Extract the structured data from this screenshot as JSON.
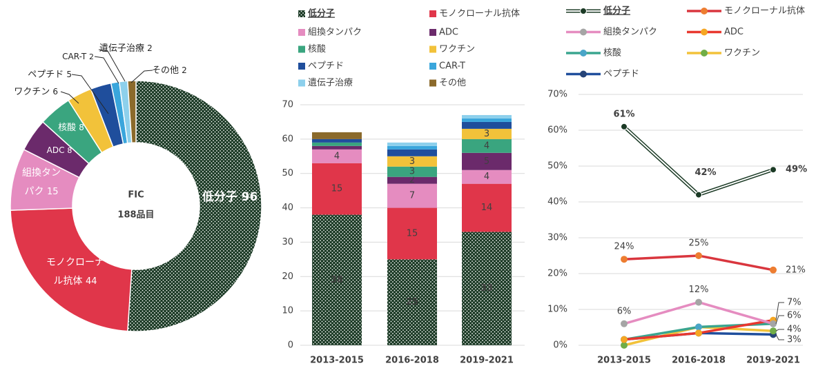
{
  "chart_data": [
    {
      "type": "pie",
      "center_title": "FIC",
      "center_subtitle": "188品目",
      "categories": [
        "低分子",
        "モノクローナル抗体",
        "組換タンパク",
        "ADC",
        "核酸",
        "ワクチン",
        "ペプチド",
        "CAR-T",
        "遺伝子治療",
        "その他"
      ],
      "values": [
        96,
        44,
        15,
        8,
        8,
        6,
        5,
        2,
        2,
        2
      ],
      "colors": [
        "#1b3a25",
        "#e0364a",
        "#e58cc0",
        "#6b2a6b",
        "#3aa57f",
        "#f2c23a",
        "#1f4e9c",
        "#3aa6dc",
        "#8dd0ec",
        "#8b6a2b"
      ],
      "patterns": [
        "dots",
        null,
        null,
        null,
        null,
        null,
        null,
        null,
        null,
        null
      ]
    },
    {
      "type": "bar",
      "stacked": true,
      "categories": [
        "2013-2015",
        "2016-2018",
        "2019-2021"
      ],
      "ylim": [
        0,
        70
      ],
      "yticks": [
        0,
        10,
        20,
        30,
        40,
        50,
        60,
        70
      ],
      "grid": true,
      "series": [
        {
          "name": "低分子",
          "color": "#1b3a25",
          "pattern": "dots",
          "values": [
            38,
            25,
            33
          ]
        },
        {
          "name": "モノクローナル抗体",
          "color": "#e0364a",
          "values": [
            15,
            15,
            14
          ]
        },
        {
          "name": "組換タンパク",
          "color": "#e58cc0",
          "values": [
            4,
            7,
            4
          ]
        },
        {
          "name": "ADC",
          "color": "#6b2a6b",
          "values": [
            1,
            2,
            5
          ]
        },
        {
          "name": "核酸",
          "color": "#3aa57f",
          "values": [
            1,
            3,
            4
          ]
        },
        {
          "name": "ワクチン",
          "color": "#f2c23a",
          "values": [
            0,
            3,
            3
          ]
        },
        {
          "name": "ペプチド",
          "color": "#1f4e9c",
          "values": [
            1,
            2,
            2
          ]
        },
        {
          "name": "CAR-T",
          "color": "#3aa6dc",
          "values": [
            0,
            1,
            1
          ]
        },
        {
          "name": "遺伝子治療",
          "color": "#8dd0ec",
          "values": [
            0,
            1,
            1
          ]
        },
        {
          "name": "その他",
          "color": "#8b6a2b",
          "values": [
            2,
            0,
            0
          ]
        }
      ]
    },
    {
      "type": "line",
      "categories": [
        "2013-2015",
        "2016-2018",
        "2019-2021"
      ],
      "ylim": [
        0,
        70
      ],
      "yticks": [
        {
          "value": 0,
          "label": "0%"
        },
        {
          "value": 10,
          "label": "10%"
        },
        {
          "value": 20,
          "label": "20%"
        },
        {
          "value": 30,
          "label": "30%"
        },
        {
          "value": 40,
          "label": "40%"
        },
        {
          "value": 50,
          "label": "50%"
        },
        {
          "value": 60,
          "label": "60%"
        },
        {
          "value": 70,
          "label": "70%"
        }
      ],
      "grid": true,
      "series": [
        {
          "name": "低分子",
          "color": "#1b3a25",
          "marker_color": "#1b3a25",
          "style": "double",
          "values": [
            61,
            42,
            49
          ],
          "value_labels": [
            "61%",
            "42%",
            "49%"
          ]
        },
        {
          "name": "モノクローナル抗体",
          "color": "#d9363e",
          "marker_color": "#ed7d31",
          "values": [
            24,
            25,
            21
          ],
          "value_labels": [
            "24%",
            "25%",
            "21%"
          ]
        },
        {
          "name": "組換タンパク",
          "color": "#e58cc0",
          "marker_color": "#a5a5a5",
          "values": [
            6,
            12,
            6
          ],
          "value_labels": [
            "6%",
            "12%",
            null
          ]
        },
        {
          "name": "ADC",
          "color": "#e8382f",
          "marker_color": "#f5a623",
          "values": [
            1.6,
            3.4,
            7
          ],
          "value_labels": [
            null,
            null,
            "7%"
          ]
        },
        {
          "name": "核酸",
          "color": "#3aa58f",
          "marker_color": "#4aa5c8",
          "values": [
            1.6,
            5.1,
            6
          ],
          "value_labels": [
            null,
            null,
            "6%"
          ]
        },
        {
          "name": "ワクチン",
          "color": "#f2c23a",
          "marker_color": "#70ad47",
          "values": [
            0,
            5.1,
            4
          ],
          "value_labels": [
            null,
            null,
            "4%"
          ]
        },
        {
          "name": "ペプチド",
          "color": "#1f4e9c",
          "marker_color": "#264478",
          "values": [
            1.6,
            3.4,
            3
          ],
          "value_labels": [
            null,
            null,
            "3%"
          ]
        }
      ]
    }
  ]
}
